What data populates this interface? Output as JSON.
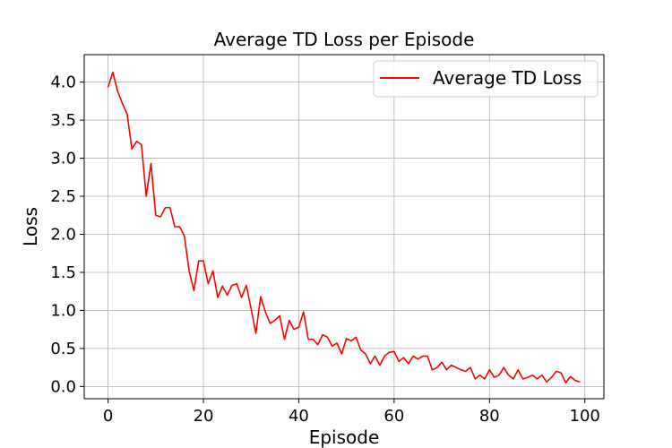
{
  "chart_data": {
    "type": "line",
    "title": "Average TD Loss per Episode",
    "xlabel": "Episode",
    "ylabel": "Loss",
    "xlim": [
      -5,
      104
    ],
    "ylim": [
      -0.16,
      4.36
    ],
    "xticks": [
      0,
      20,
      40,
      60,
      80,
      100
    ],
    "yticks": [
      0.0,
      0.5,
      1.0,
      1.5,
      2.0,
      2.5,
      3.0,
      3.5,
      4.0
    ],
    "grid": true,
    "legend_position": "top-right",
    "series": [
      {
        "name": "Average TD Loss",
        "color": "#ff0000",
        "x": [
          0,
          1,
          2,
          3,
          4,
          5,
          6,
          7,
          8,
          9,
          10,
          11,
          12,
          13,
          14,
          15,
          16,
          17,
          18,
          19,
          20,
          21,
          22,
          23,
          24,
          25,
          26,
          27,
          28,
          29,
          30,
          31,
          32,
          33,
          34,
          35,
          36,
          37,
          38,
          39,
          40,
          41,
          42,
          43,
          44,
          45,
          46,
          47,
          48,
          49,
          50,
          51,
          52,
          53,
          54,
          55,
          56,
          57,
          58,
          59,
          60,
          61,
          62,
          63,
          64,
          65,
          66,
          67,
          68,
          69,
          70,
          71,
          72,
          73,
          74,
          75,
          76,
          77,
          78,
          79,
          80,
          81,
          82,
          83,
          84,
          85,
          86,
          87,
          88,
          89,
          90,
          91,
          92,
          93,
          94,
          95,
          96,
          97,
          98,
          99
        ],
        "values": [
          3.93,
          4.13,
          3.88,
          3.72,
          3.58,
          3.12,
          3.22,
          3.18,
          2.5,
          2.93,
          2.25,
          2.23,
          2.35,
          2.35,
          2.1,
          2.1,
          1.98,
          1.52,
          1.26,
          1.65,
          1.65,
          1.35,
          1.52,
          1.17,
          1.32,
          1.2,
          1.33,
          1.35,
          1.17,
          1.33,
          1.02,
          0.7,
          1.18,
          0.98,
          0.83,
          0.87,
          0.93,
          0.62,
          0.87,
          0.75,
          0.78,
          0.98,
          0.62,
          0.62,
          0.55,
          0.68,
          0.65,
          0.53,
          0.57,
          0.43,
          0.63,
          0.6,
          0.65,
          0.48,
          0.43,
          0.3,
          0.4,
          0.28,
          0.4,
          0.45,
          0.46,
          0.33,
          0.38,
          0.3,
          0.4,
          0.36,
          0.4,
          0.4,
          0.22,
          0.25,
          0.32,
          0.22,
          0.28,
          0.25,
          0.22,
          0.2,
          0.25,
          0.1,
          0.15,
          0.1,
          0.22,
          0.12,
          0.15,
          0.25,
          0.15,
          0.1,
          0.22,
          0.1,
          0.12,
          0.15,
          0.1,
          0.15,
          0.06,
          0.12,
          0.2,
          0.18,
          0.05,
          0.13,
          0.08,
          0.06
        ]
      }
    ]
  }
}
